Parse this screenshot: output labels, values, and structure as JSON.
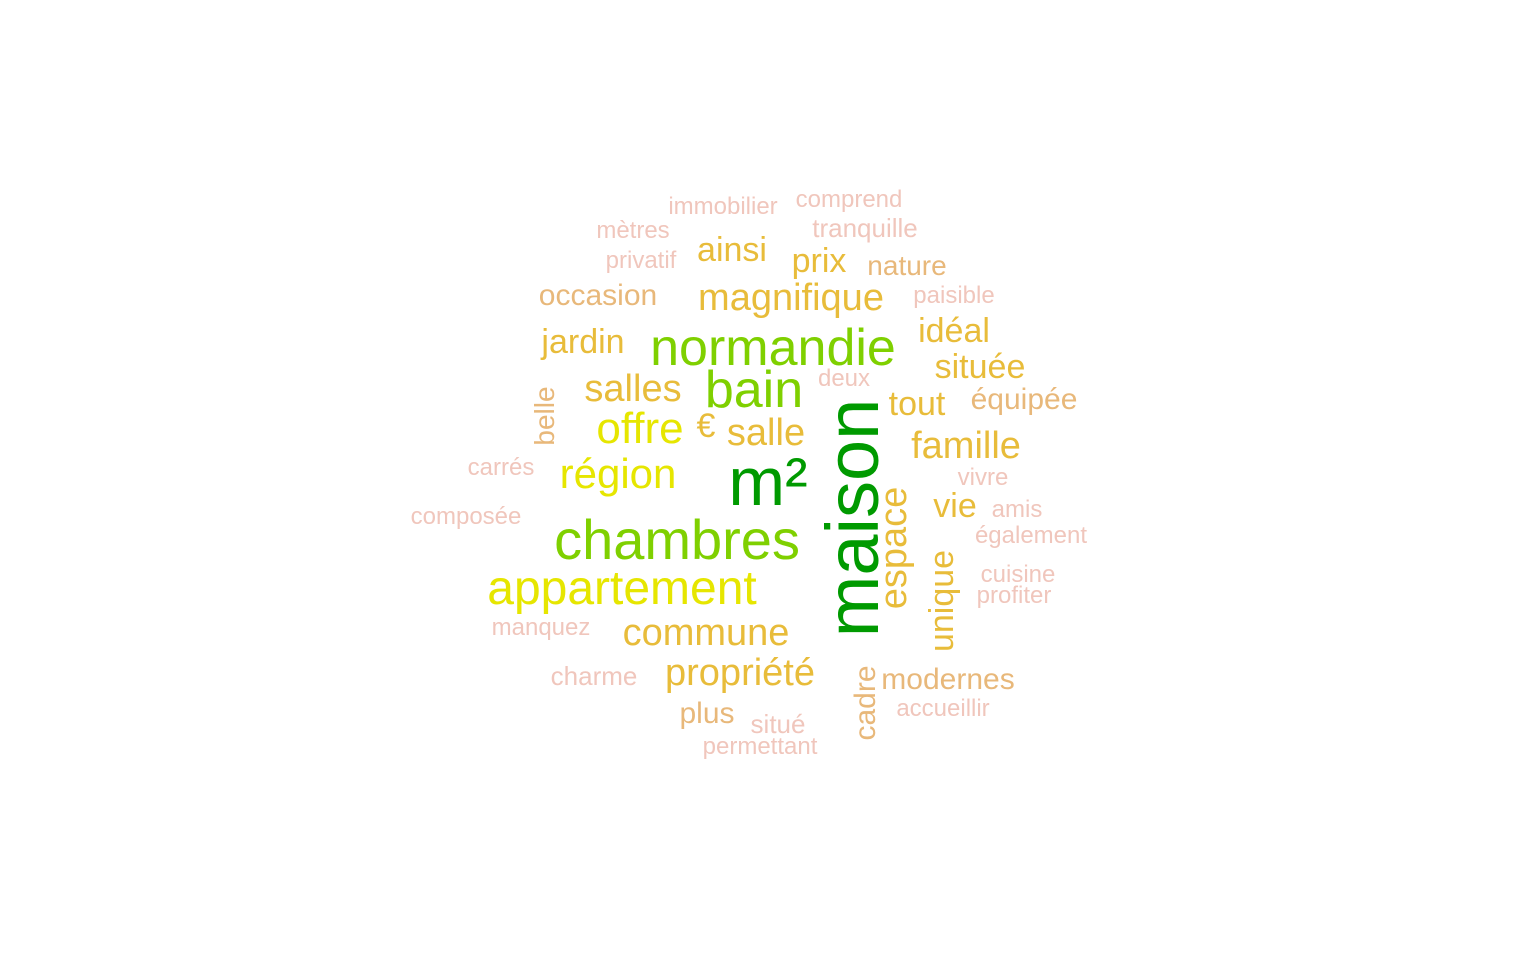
{
  "palette": {
    "dark_green": "#009a00",
    "lime_green": "#7fd000",
    "yellow": "#e6e600",
    "gold": "#e8bc3a",
    "tan": "#e8b87a",
    "pink": "#f0c6bc"
  },
  "words": [
    {
      "text": "maison",
      "color": "#009a00",
      "weight": 10
    },
    {
      "text": "m²",
      "color": "#009a00",
      "weight": 9
    },
    {
      "text": "chambres",
      "color": "#7fd000",
      "weight": 8
    },
    {
      "text": "normandie",
      "color": "#7fd000",
      "weight": 7
    },
    {
      "text": "bain",
      "color": "#7fd000",
      "weight": 7
    },
    {
      "text": "appartement",
      "color": "#e6e600",
      "weight": 7
    },
    {
      "text": "région",
      "color": "#e6e600",
      "weight": 6
    },
    {
      "text": "offre",
      "color": "#e6e600",
      "weight": 6
    },
    {
      "text": "commune",
      "color": "#e8bc3a",
      "weight": 5
    },
    {
      "text": "propriété",
      "color": "#e8bc3a",
      "weight": 5
    },
    {
      "text": "magnifique",
      "color": "#e8bc3a",
      "weight": 5
    },
    {
      "text": "salles",
      "color": "#e8bc3a",
      "weight": 5
    },
    {
      "text": "salle",
      "color": "#e8bc3a",
      "weight": 5
    },
    {
      "text": "famille",
      "color": "#e8bc3a",
      "weight": 5
    },
    {
      "text": "espace",
      "color": "#e8bc3a",
      "weight": 5
    },
    {
      "text": "jardin",
      "color": "#e8bc3a",
      "weight": 4
    },
    {
      "text": "ainsi",
      "color": "#e8bc3a",
      "weight": 4
    },
    {
      "text": "prix",
      "color": "#e8bc3a",
      "weight": 4
    },
    {
      "text": "idéal",
      "color": "#e8bc3a",
      "weight": 4
    },
    {
      "text": "située",
      "color": "#e8bc3a",
      "weight": 4
    },
    {
      "text": "tout",
      "color": "#e8bc3a",
      "weight": 4
    },
    {
      "text": "vie",
      "color": "#e8bc3a",
      "weight": 4
    },
    {
      "text": "unique",
      "color": "#e8bc3a",
      "weight": 4
    },
    {
      "text": "€",
      "color": "#e8bc3a",
      "weight": 4
    },
    {
      "text": "occasion",
      "color": "#e8b87a",
      "weight": 3
    },
    {
      "text": "nature",
      "color": "#e8b87a",
      "weight": 3
    },
    {
      "text": "équipée",
      "color": "#e8b87a",
      "weight": 3
    },
    {
      "text": "modernes",
      "color": "#e8b87a",
      "weight": 3
    },
    {
      "text": "plus",
      "color": "#e8b87a",
      "weight": 3
    },
    {
      "text": "cadre",
      "color": "#e8b87a",
      "weight": 3
    },
    {
      "text": "belle",
      "color": "#e8b87a",
      "weight": 3
    },
    {
      "text": "tranquille",
      "color": "#f0c6bc",
      "weight": 2
    },
    {
      "text": "comprend",
      "color": "#f0c6bc",
      "weight": 2
    },
    {
      "text": "immobilier",
      "color": "#f0c6bc",
      "weight": 2
    },
    {
      "text": "mètres",
      "color": "#f0c6bc",
      "weight": 2
    },
    {
      "text": "privatif",
      "color": "#f0c6bc",
      "weight": 2
    },
    {
      "text": "paisible",
      "color": "#f0c6bc",
      "weight": 2
    },
    {
      "text": "deux",
      "color": "#f0c6bc",
      "weight": 2
    },
    {
      "text": "carrés",
      "color": "#f0c6bc",
      "weight": 2
    },
    {
      "text": "composée",
      "color": "#f0c6bc",
      "weight": 2
    },
    {
      "text": "vivre",
      "color": "#f0c6bc",
      "weight": 2
    },
    {
      "text": "amis",
      "color": "#f0c6bc",
      "weight": 2
    },
    {
      "text": "également",
      "color": "#f0c6bc",
      "weight": 2
    },
    {
      "text": "cuisine",
      "color": "#f0c6bc",
      "weight": 2
    },
    {
      "text": "profiter",
      "color": "#f0c6bc",
      "weight": 2
    },
    {
      "text": "manquez",
      "color": "#f0c6bc",
      "weight": 2
    },
    {
      "text": "charme",
      "color": "#f0c6bc",
      "weight": 2
    },
    {
      "text": "accueillir",
      "color": "#f0c6bc",
      "weight": 2
    },
    {
      "text": "situé",
      "color": "#f0c6bc",
      "weight": 2
    },
    {
      "text": "permettant",
      "color": "#f0c6bc",
      "weight": 2
    }
  ]
}
